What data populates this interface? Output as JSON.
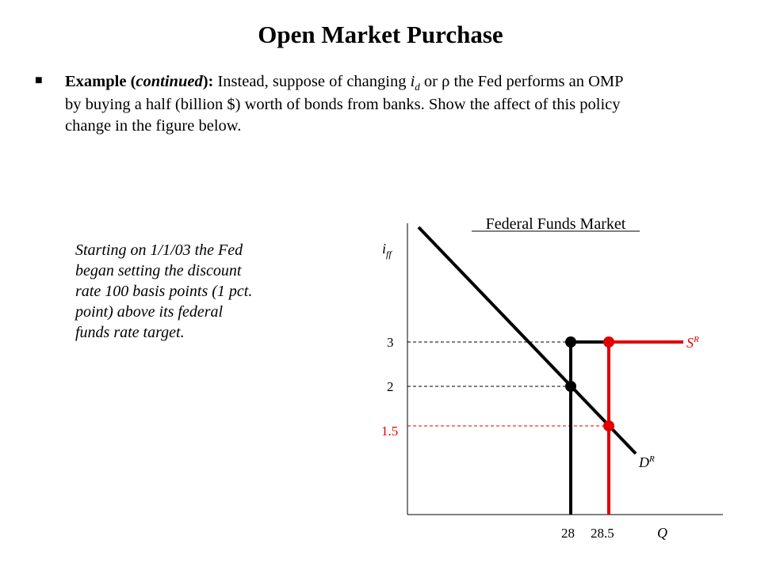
{
  "slide": {
    "title": "Open Market Purchase",
    "bullet": {
      "icon": "square-bullet-icon",
      "lead_bold": "Example (",
      "lead_bold_italic": "continued",
      "lead_bold_end": "):",
      "text_1": " Instead, suppose of changing ",
      "id_main": "i",
      "id_sub": "d",
      "text_2": " or ",
      "rho": "ρ",
      "text_3": " the Fed performs an OMP",
      "line_2": "by buying a half (billion $) worth of bonds from banks. Show the affect of this policy",
      "line_3": "change in the figure below."
    },
    "note_lines": [
      "Starting on 1/1/03 the Fed",
      "began setting the discount",
      "rate 100 basis points (1 pct.",
      "point) above its federal",
      "funds rate target."
    ]
  },
  "graph": {
    "title": "Federal Funds Market",
    "y_axis_label": "i",
    "y_axis_sub": "ff",
    "x_axis_label": "Q",
    "y_ticks": [
      {
        "label": "3",
        "color": "#000000"
      },
      {
        "label": "2",
        "color": "#000000"
      },
      {
        "label": "1.5",
        "color": "#e00000"
      }
    ],
    "x_ticks": [
      {
        "label": "28",
        "color": "#000000"
      },
      {
        "label": "28.5",
        "color": "#000000"
      }
    ],
    "supply_label": "S",
    "supply_sup": "R",
    "demand_label": "D",
    "demand_sup": "R",
    "colors": {
      "black": "#000000",
      "red": "#e00000"
    }
  }
}
